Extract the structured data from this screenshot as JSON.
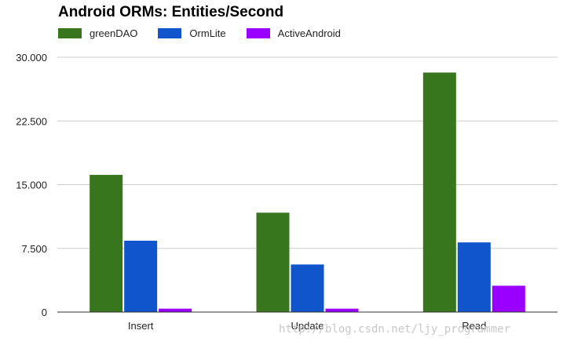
{
  "chart_data": {
    "type": "bar",
    "title": "Android ORMs: Entities/Second",
    "categories": [
      "Insert",
      "Update",
      "Read"
    ],
    "series": [
      {
        "name": "greenDAO",
        "color": "#38761d",
        "values": [
          16150,
          11700,
          28200
        ]
      },
      {
        "name": "OrmLite",
        "color": "#1155cc",
        "values": [
          8400,
          5600,
          8200
        ]
      },
      {
        "name": "ActiveAndroid",
        "color": "#9900ff",
        "values": [
          400,
          400,
          3100
        ]
      }
    ],
    "ylim": [
      0,
      30000
    ],
    "yticks": [
      0,
      7500,
      15000,
      22500,
      30000
    ],
    "ytick_labels": [
      "0",
      "7.500",
      "15.000",
      "22.500",
      "30.000"
    ],
    "xlabel": "",
    "ylabel": "",
    "grid": true,
    "legend": "top-left"
  },
  "watermark": "http://blog.csdn.net/ljy_programmer"
}
